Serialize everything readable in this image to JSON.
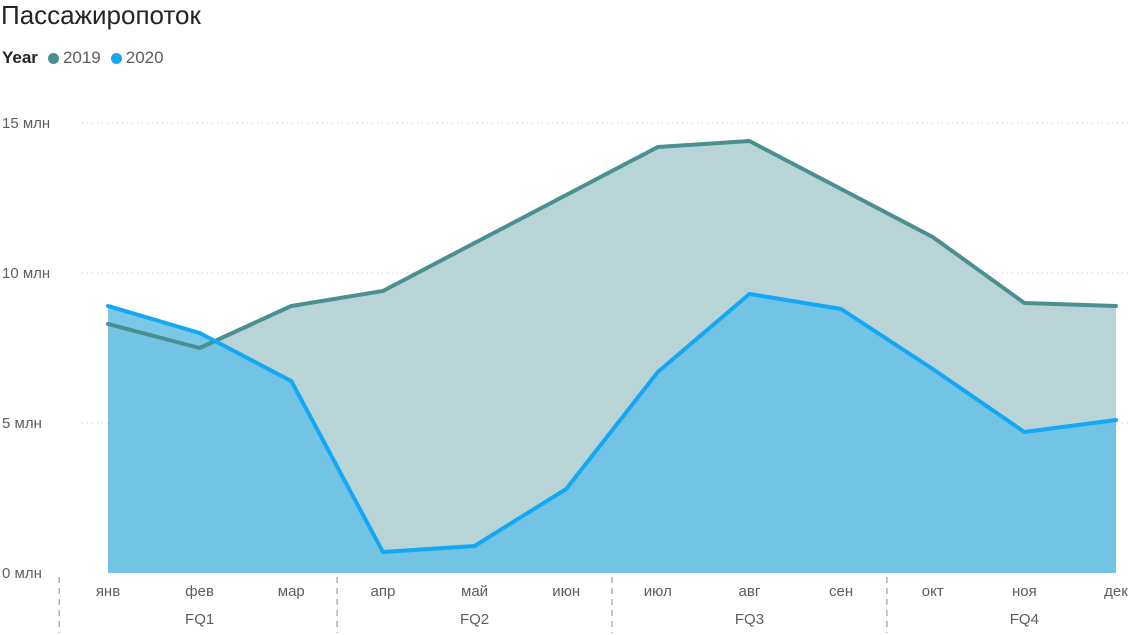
{
  "chart_data": {
    "type": "area",
    "title": "Пассажиропоток",
    "legend": {
      "title": "Year",
      "placement": "top-left"
    },
    "categories": [
      "янв",
      "фев",
      "мар",
      "апр",
      "май",
      "июн",
      "июл",
      "авг",
      "сен",
      "окт",
      "ноя",
      "дек"
    ],
    "groups": [
      {
        "label": "FQ1",
        "span": [
          0,
          2
        ]
      },
      {
        "label": "FQ2",
        "span": [
          3,
          5
        ]
      },
      {
        "label": "FQ3",
        "span": [
          6,
          8
        ]
      },
      {
        "label": "FQ4",
        "span": [
          9,
          11
        ]
      }
    ],
    "series": [
      {
        "name": "2019",
        "color": "#4a9090",
        "fill": "#b8d4d6",
        "values": [
          8.3,
          7.5,
          8.9,
          9.4,
          11.0,
          12.6,
          14.2,
          14.4,
          12.8,
          11.2,
          9.0,
          8.9
        ]
      },
      {
        "name": "2020",
        "color": "#12a8f5",
        "fill": "#6bc1e5",
        "values": [
          8.9,
          8.0,
          6.4,
          0.7,
          0.9,
          2.8,
          6.7,
          9.3,
          8.8,
          6.8,
          4.7,
          5.1
        ]
      }
    ],
    "yticks": [
      {
        "value": 0,
        "label": "0 млн"
      },
      {
        "value": 5,
        "label": "5 млн"
      },
      {
        "value": 10,
        "label": "10 млн"
      },
      {
        "value": 15,
        "label": "15 млн"
      }
    ],
    "ylim": [
      0,
      15
    ],
    "grid": true
  }
}
